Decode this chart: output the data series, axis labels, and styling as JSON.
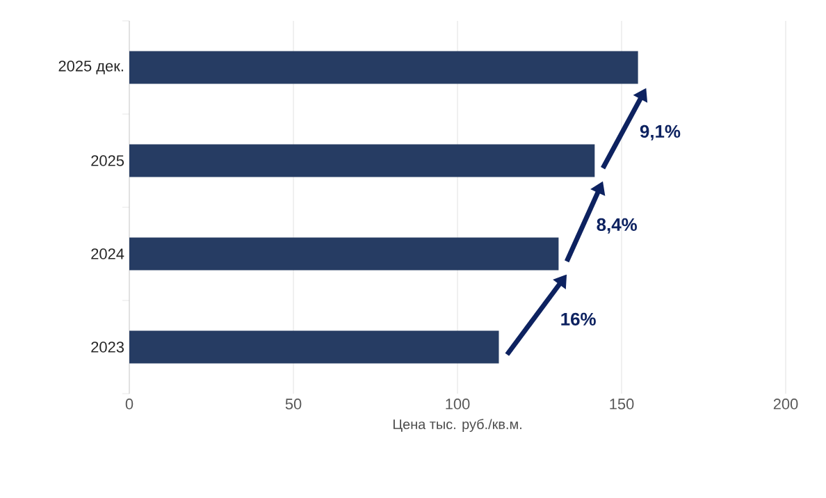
{
  "chart_data": {
    "type": "bar",
    "orientation": "horizontal",
    "categories": [
      "2025 дек.",
      "2025",
      "2024",
      "2023"
    ],
    "values": [
      155,
      141.8,
      130.8,
      112.6
    ],
    "color": "#263c63",
    "xlim": [
      0,
      200
    ],
    "xticks": [
      0,
      50,
      100,
      150,
      200
    ],
    "xlabel": "Цена тыс. руб./кв.м.",
    "grid": "x",
    "annotations": [
      "16%",
      "8,4%",
      "9,1%"
    ]
  }
}
